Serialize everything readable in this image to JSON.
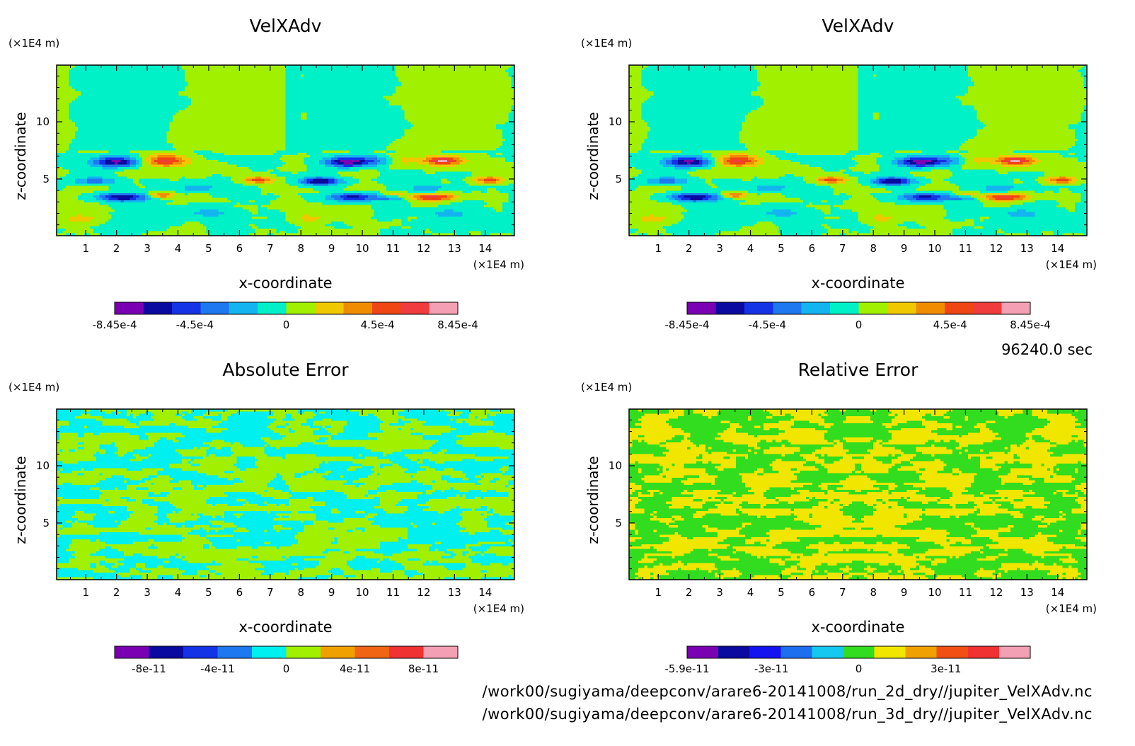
{
  "footer": {
    "timestamp": "96240.0 sec",
    "path_2d": "/work00/sugiyama/deepconv/arare6-20141008/run_2d_dry//jupiter_VelXAdv.nc",
    "path_3d": "/work00/sugiyama/deepconv/arare6-20141008/run_3d_dry//jupiter_VelXAdv.nc"
  },
  "chart_data": [
    {
      "type": "heatmap",
      "title": "VelXAdv",
      "xlabel": "x-coordinate",
      "ylabel": "z-coordinate",
      "x_unit": "(×1E4 m)",
      "y_unit": "(×1E4 m)",
      "xlim": [
        0.05,
        14.95
      ],
      "ylim": [
        0.05,
        14.95
      ],
      "xticks": [
        1,
        2,
        3,
        4,
        5,
        6,
        7,
        8,
        9,
        10,
        11,
        12,
        13,
        14
      ],
      "yticks": [
        5,
        10
      ],
      "colorbar": {
        "colors": [
          "#7a00b4",
          "#0a0aa0",
          "#1432e6",
          "#1e78f0",
          "#14b4f0",
          "#00f0c8",
          "#a0f000",
          "#f0c800",
          "#f08c00",
          "#f04614",
          "#f03c3c",
          "#f4a0b4"
        ],
        "tick_labels": [
          "-8.45e-4",
          "-4.5e-4",
          "0",
          "4.5e-4",
          "8.45e-4"
        ],
        "tick_values": [
          -0.000845,
          -0.00045,
          0,
          0.00045,
          0.000845
        ],
        "vmin": -0.000845,
        "vmax": 0.000845
      },
      "field": "velxadv"
    },
    {
      "type": "heatmap",
      "title": "VelXAdv",
      "xlabel": "x-coordinate",
      "ylabel": "z-coordinate",
      "x_unit": "(×1E4 m)",
      "y_unit": "(×1E4 m)",
      "xlim": [
        0.05,
        14.95
      ],
      "ylim": [
        0.05,
        14.95
      ],
      "xticks": [
        1,
        2,
        3,
        4,
        5,
        6,
        7,
        8,
        9,
        10,
        11,
        12,
        13,
        14
      ],
      "yticks": [
        5,
        10
      ],
      "colorbar": {
        "colors": [
          "#7a00b4",
          "#0a0aa0",
          "#1432e6",
          "#1e78f0",
          "#14b4f0",
          "#00f0c8",
          "#a0f000",
          "#f0c800",
          "#f08c00",
          "#f04614",
          "#f03c3c",
          "#f4a0b4"
        ],
        "tick_labels": [
          "-8.45e-4",
          "-4.5e-4",
          "0",
          "4.5e-4",
          "8.45e-4"
        ],
        "tick_values": [
          -0.000845,
          -0.00045,
          0,
          0.00045,
          0.000845
        ],
        "vmin": -0.000845,
        "vmax": 0.000845
      },
      "field": "velxadv"
    },
    {
      "type": "heatmap",
      "title": "Absolute Error",
      "xlabel": "x-coordinate",
      "ylabel": "z-coordinate",
      "x_unit": "(×1E4 m)",
      "y_unit": "(×1E4 m)",
      "xlim": [
        0.05,
        14.95
      ],
      "ylim": [
        0.05,
        14.95
      ],
      "xticks": [
        1,
        2,
        3,
        4,
        5,
        6,
        7,
        8,
        9,
        10,
        11,
        12,
        13,
        14
      ],
      "yticks": [
        5,
        10
      ],
      "colorbar": {
        "colors": [
          "#7a00b4",
          "#0a0aa0",
          "#1432e6",
          "#1e78f0",
          "#00f0f0",
          "#a0f000",
          "#f0a000",
          "#f06414",
          "#f03232",
          "#f4a0b4"
        ],
        "tick_labels": [
          "-8e-11",
          "-4e-11",
          "0",
          "4e-11",
          "8e-11"
        ],
        "tick_values": [
          -8e-11,
          -4e-11,
          0,
          4e-11,
          8e-11
        ],
        "vmin": -1e-10,
        "vmax": 1e-10
      },
      "field": "abs_error"
    },
    {
      "type": "heatmap",
      "title": "Relative Error",
      "xlabel": "x-coordinate",
      "ylabel": "z-coordinate",
      "x_unit": "(×1E4 m)",
      "y_unit": "(×1E4 m)",
      "xlim": [
        0.05,
        14.95
      ],
      "ylim": [
        0.05,
        14.95
      ],
      "xticks": [
        1,
        2,
        3,
        4,
        5,
        6,
        7,
        8,
        9,
        10,
        11,
        12,
        13,
        14
      ],
      "yticks": [
        5,
        10
      ],
      "colorbar": {
        "colors": [
          "#7a00b4",
          "#0a0aa0",
          "#1414f0",
          "#1e6ef0",
          "#14c8f0",
          "#32dc1e",
          "#f0e600",
          "#f0a000",
          "#f05014",
          "#f03232",
          "#f4a0b4"
        ],
        "tick_labels": [
          "-5.9e-11",
          "-3e-11",
          "0",
          "3e-11"
        ],
        "tick_values": [
          -5.9e-11,
          -3e-11,
          0,
          3e-11
        ],
        "vmin": -5.9e-11,
        "vmax": 5.9e-11
      },
      "field": "rel_error"
    }
  ]
}
